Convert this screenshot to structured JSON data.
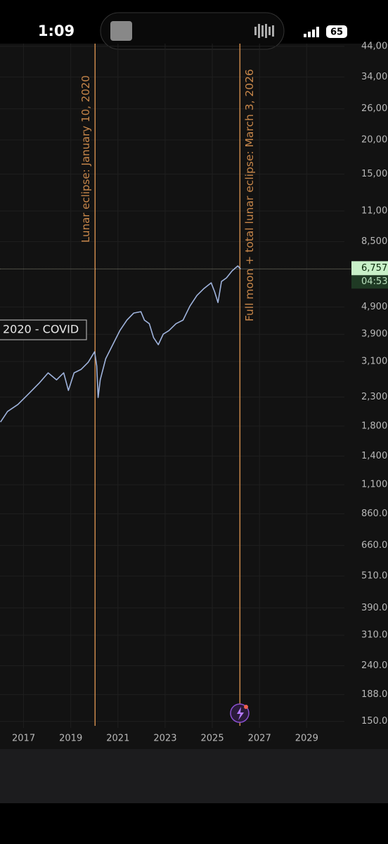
{
  "status_bar": {
    "time": "1:09",
    "battery": "65"
  },
  "chart_data": {
    "type": "line",
    "log_scale": true,
    "grid": true,
    "color": "#9fb3dc",
    "x": [
      2016.02,
      2016.32,
      2016.76,
      2017.21,
      2017.65,
      2018.04,
      2018.4,
      2018.7,
      2018.9,
      2019.14,
      2019.44,
      2019.74,
      2020.01,
      2020.1,
      2020.16,
      2020.25,
      2020.48,
      2020.78,
      2021.08,
      2021.38,
      2021.67,
      2021.97,
      2022.12,
      2022.33,
      2022.51,
      2022.71,
      2022.92,
      2023.16,
      2023.46,
      2023.76,
      2024.05,
      2024.35,
      2024.65,
      2024.95,
      2025.1,
      2025.24,
      2025.39,
      2025.6,
      2025.84,
      2026.08,
      2026.2
    ],
    "values": [
      1863,
      2036,
      2160,
      2360,
      2579,
      2818,
      2657,
      2818,
      2431,
      2818,
      2904,
      3080,
      3367,
      2989,
      2291,
      2657,
      3174,
      3572,
      4020,
      4394,
      4661,
      4717,
      4394,
      4264,
      3789,
      3572,
      3904,
      4020,
      4264,
      4394,
      4943,
      5405,
      5734,
      6014,
      5569,
      5093,
      6080,
      6266,
      6649,
      6932,
      6757
    ],
    "xlim": [
      2016.0,
      2030.6
    ],
    "xticks": [
      2017,
      2019,
      2021,
      2023,
      2025,
      2027,
      2029
    ],
    "ylim": [
      142,
      45000
    ],
    "yticks": [
      {
        "value": 44000,
        "label": "44,000"
      },
      {
        "value": 34000,
        "label": "34,000"
      },
      {
        "value": 26000,
        "label": "26,000"
      },
      {
        "value": 20000,
        "label": "20,000"
      },
      {
        "value": 15000,
        "label": "15,000"
      },
      {
        "value": 11000,
        "label": "11,000"
      },
      {
        "value": 8500,
        "label": "8,500"
      },
      {
        "value": 4900,
        "label": "4,900"
      },
      {
        "value": 3900,
        "label": "3,900"
      },
      {
        "value": 3100,
        "label": "3,100"
      },
      {
        "value": 2300,
        "label": "2,300"
      },
      {
        "value": 1800,
        "label": "1,800"
      },
      {
        "value": 1400,
        "label": "1,400"
      },
      {
        "value": 1100,
        "label": "1,100"
      },
      {
        "value": 860,
        "label": "860.0"
      },
      {
        "value": 660,
        "label": "660.0"
      },
      {
        "value": 510,
        "label": "510.0"
      },
      {
        "value": 390,
        "label": "390.0"
      },
      {
        "value": 310,
        "label": "310.0"
      },
      {
        "value": 240,
        "label": "240.0"
      },
      {
        "value": 188,
        "label": "188.0"
      },
      {
        "value": 150,
        "label": "150.0"
      }
    ],
    "last_price": {
      "value": 6757,
      "label": "6,757"
    },
    "countdown": "04:53",
    "annotations": [
      {
        "x": 2020.03,
        "text": "Lunar eclipse: January 10, 2020",
        "color": "#c8874a"
      },
      {
        "x": 2026.17,
        "text": "Full moon + total lunar eclipse: March 3, 2026",
        "color": "#c8874a"
      }
    ],
    "label_box": "2020 - COVID"
  }
}
